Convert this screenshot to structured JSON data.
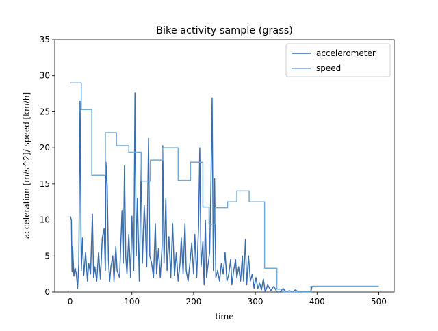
{
  "chart_data": {
    "type": "line",
    "title": "Bike activity sample (grass)",
    "xlabel": "time",
    "ylabel": "acceleration [m/s^2]/ speed [km/h]",
    "xlim": [
      -25,
      525
    ],
    "xticks": [
      0,
      100,
      200,
      300,
      400,
      500
    ],
    "ylim": [
      0,
      35
    ],
    "yticks": [
      0,
      5,
      10,
      15,
      20,
      25,
      30,
      35
    ],
    "legend": "upper right",
    "series": [
      {
        "name": "accelerometer",
        "color": "#3a6eae",
        "x": [
          0,
          2,
          3,
          4,
          6,
          8,
          10,
          12,
          14,
          16,
          18,
          20,
          22,
          25,
          28,
          30,
          33,
          36,
          38,
          40,
          43,
          46,
          49,
          52,
          55,
          57,
          58,
          60,
          62,
          64,
          66,
          69,
          71,
          74,
          76,
          80,
          84,
          86,
          88,
          90,
          92,
          95,
          98,
          100,
          103,
          105,
          107,
          109,
          112,
          115,
          117,
          120,
          122,
          124,
          127,
          129,
          132,
          135,
          138,
          140,
          143,
          146,
          149,
          150,
          152,
          155,
          157,
          160,
          163,
          166,
          169,
          172,
          175,
          178,
          180,
          183,
          186,
          188,
          191,
          194,
          197,
          200,
          202,
          205,
          208,
          210,
          212,
          215,
          217,
          219,
          221,
          223,
          226,
          228,
          230,
          232,
          234,
          236,
          239,
          242,
          245,
          248,
          251,
          254,
          257,
          260,
          262,
          265,
          268,
          270,
          273,
          276,
          279,
          281,
          284,
          286,
          289,
          292,
          295,
          298,
          301,
          304,
          307,
          310,
          313,
          316,
          320,
          325,
          330,
          335,
          340,
          345,
          350,
          355,
          360,
          365,
          370,
          380,
          390,
          392,
          500
        ],
        "values": [
          10.5,
          10,
          2.8,
          6.3,
          2.2,
          3.3,
          2.5,
          0.5,
          4,
          26.5,
          3,
          7.5,
          2.3,
          5.5,
          1.5,
          4,
          2.5,
          10.8,
          2,
          3.5,
          1.5,
          5.5,
          1.8,
          7.5,
          8.8,
          3,
          18,
          14.7,
          4.5,
          1.5,
          3.5,
          5,
          1.5,
          6.3,
          3,
          2,
          11.3,
          4,
          17.5,
          5,
          2.5,
          8,
          2,
          10.5,
          3,
          27.6,
          5,
          13,
          1.5,
          17.7,
          4,
          12,
          8.5,
          3.5,
          21.3,
          5,
          4,
          2,
          9.5,
          2.5,
          6,
          2,
          6.5,
          20.3,
          4,
          13,
          3,
          7.7,
          2,
          9.5,
          2.3,
          5.5,
          1.5,
          4,
          7.5,
          2.5,
          9.5,
          3,
          1.5,
          4,
          6.8,
          2.5,
          8,
          2,
          9,
          20,
          3.5,
          7,
          1,
          10,
          2,
          3.5,
          5.5,
          14.5,
          26.9,
          3,
          15.7,
          2,
          3,
          1.5,
          4,
          2.5,
          5.5,
          1.5,
          2.5,
          4.5,
          1,
          3,
          4.5,
          2,
          3.5,
          1.5,
          5,
          1.5,
          7.3,
          1,
          5,
          1.5,
          2.5,
          0.5,
          2,
          0.5,
          1.2,
          0.3,
          1.8,
          0,
          1,
          0.2,
          0.8,
          0,
          0,
          0.5,
          0,
          0.2,
          0,
          0.3,
          0,
          0.1,
          0,
          0.8,
          0.8
        ]
      },
      {
        "name": "speed",
        "color": "#72a9d5",
        "x": [
          0,
          18,
          18,
          35,
          35,
          57,
          57,
          75,
          75,
          95,
          95,
          115,
          115,
          130,
          130,
          150,
          150,
          175,
          175,
          195,
          195,
          215,
          215,
          225,
          225,
          235,
          235,
          255,
          255,
          270,
          270,
          290,
          290,
          315,
          315,
          335,
          335,
          345,
          345,
          390,
          390,
          500
        ],
        "values": [
          29,
          29,
          25.3,
          25.3,
          16.2,
          16.2,
          22.1,
          22.1,
          20.3,
          20.3,
          19.4,
          19.4,
          15.4,
          15.4,
          18.3,
          18.3,
          20,
          20,
          15.5,
          15.5,
          18,
          18,
          11.8,
          11.8,
          9.4,
          9.4,
          11.7,
          11.7,
          12.5,
          12.5,
          14,
          14,
          12.5,
          12.5,
          3.3,
          3.3,
          0.4,
          0.4,
          0,
          0,
          0.8,
          0.8
        ]
      }
    ]
  }
}
